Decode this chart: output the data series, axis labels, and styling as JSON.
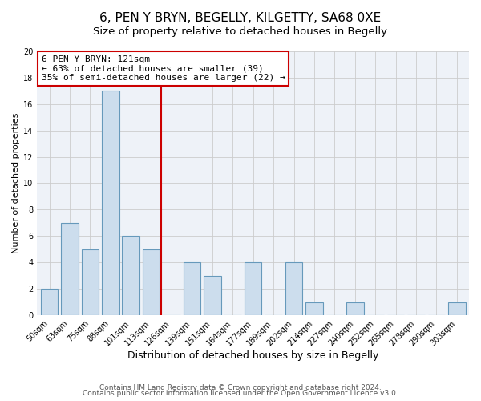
{
  "title": "6, PEN Y BRYN, BEGELLY, KILGETTY, SA68 0XE",
  "subtitle": "Size of property relative to detached houses in Begelly",
  "xlabel": "Distribution of detached houses by size in Begelly",
  "ylabel": "Number of detached properties",
  "bins": [
    "50sqm",
    "63sqm",
    "75sqm",
    "88sqm",
    "101sqm",
    "113sqm",
    "126sqm",
    "139sqm",
    "151sqm",
    "164sqm",
    "177sqm",
    "189sqm",
    "202sqm",
    "214sqm",
    "227sqm",
    "240sqm",
    "252sqm",
    "265sqm",
    "278sqm",
    "290sqm",
    "303sqm"
  ],
  "counts": [
    2,
    7,
    5,
    17,
    6,
    5,
    0,
    4,
    3,
    0,
    4,
    0,
    4,
    1,
    0,
    1,
    0,
    0,
    0,
    0,
    1
  ],
  "bar_color": "#ccdded",
  "bar_edge_color": "#6699bb",
  "vline_x_index": 5.5,
  "vline_color": "#cc0000",
  "annotation_line1": "6 PEN Y BRYN: 121sqm",
  "annotation_line2": "← 63% of detached houses are smaller (39)",
  "annotation_line3": "35% of semi-detached houses are larger (22) →",
  "annotation_box_color": "white",
  "annotation_box_edge": "#cc0000",
  "ylim": [
    0,
    20
  ],
  "yticks": [
    0,
    2,
    4,
    6,
    8,
    10,
    12,
    14,
    16,
    18,
    20
  ],
  "footer1": "Contains HM Land Registry data © Crown copyright and database right 2024.",
  "footer2": "Contains public sector information licensed under the Open Government Licence v3.0.",
  "bg_color": "#ffffff",
  "plot_bg_color": "#eef2f8",
  "grid_color": "#cccccc",
  "title_fontsize": 11,
  "subtitle_fontsize": 9.5,
  "xlabel_fontsize": 9,
  "ylabel_fontsize": 8,
  "tick_fontsize": 7,
  "footer_fontsize": 6.5,
  "annot_fontsize": 8
}
